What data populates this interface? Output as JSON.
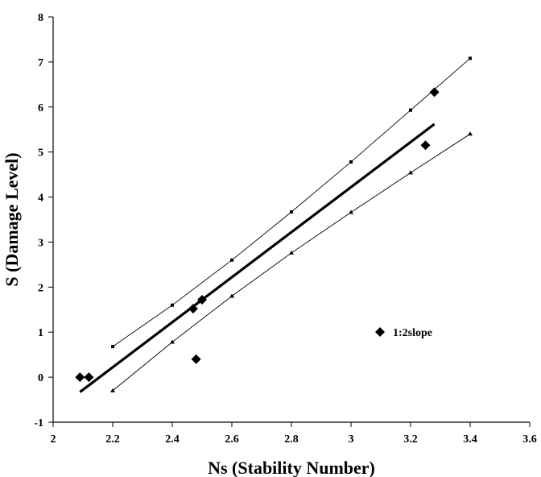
{
  "chart_data": {
    "type": "scatter",
    "xlabel": "Ns (Stability Number)",
    "ylabel": "S (Damage Level)",
    "xlim": [
      2,
      3.6
    ],
    "ylim": [
      -1,
      8
    ],
    "x_ticks": [
      "2",
      "2.2",
      "2.4",
      "2.6",
      "2.8",
      "3",
      "3.2",
      "3.4",
      "3.6"
    ],
    "y_ticks": [
      "-1",
      "0",
      "1",
      "2",
      "3",
      "4",
      "5",
      "6",
      "7",
      "8"
    ],
    "grid": false,
    "legend_position": "lower-right",
    "series": [
      {
        "name": "1:2slope",
        "kind": "scatter",
        "marker": "diamond",
        "color": "#000000",
        "points": [
          {
            "x": 2.09,
            "y": 0.0
          },
          {
            "x": 2.12,
            "y": 0.0
          },
          {
            "x": 2.47,
            "y": 1.52
          },
          {
            "x": 2.5,
            "y": 1.72
          },
          {
            "x": 2.48,
            "y": 0.4
          },
          {
            "x": 3.25,
            "y": 5.15
          },
          {
            "x": 3.28,
            "y": 6.33
          }
        ]
      },
      {
        "kind": "line",
        "style": "thick",
        "color": "#000000",
        "points": [
          {
            "x": 2.09,
            "y": -0.33
          },
          {
            "x": 3.28,
            "y": 5.62
          }
        ]
      },
      {
        "kind": "line",
        "style": "thin-upper",
        "marker": "square",
        "color": "#000000",
        "points": [
          {
            "x": 2.2,
            "y": 0.68
          },
          {
            "x": 2.4,
            "y": 1.6
          },
          {
            "x": 2.6,
            "y": 2.6
          },
          {
            "x": 2.8,
            "y": 3.67
          },
          {
            "x": 3.0,
            "y": 4.78
          },
          {
            "x": 3.2,
            "y": 5.93
          },
          {
            "x": 3.4,
            "y": 7.08
          }
        ]
      },
      {
        "kind": "line",
        "style": "thin-lower",
        "marker": "triangle",
        "color": "#000000",
        "points": [
          {
            "x": 2.2,
            "y": -0.3
          },
          {
            "x": 2.4,
            "y": 0.78
          },
          {
            "x": 2.6,
            "y": 1.8
          },
          {
            "x": 2.8,
            "y": 2.76
          },
          {
            "x": 3.0,
            "y": 3.66
          },
          {
            "x": 3.2,
            "y": 4.54
          },
          {
            "x": 3.4,
            "y": 5.4
          }
        ]
      }
    ]
  }
}
